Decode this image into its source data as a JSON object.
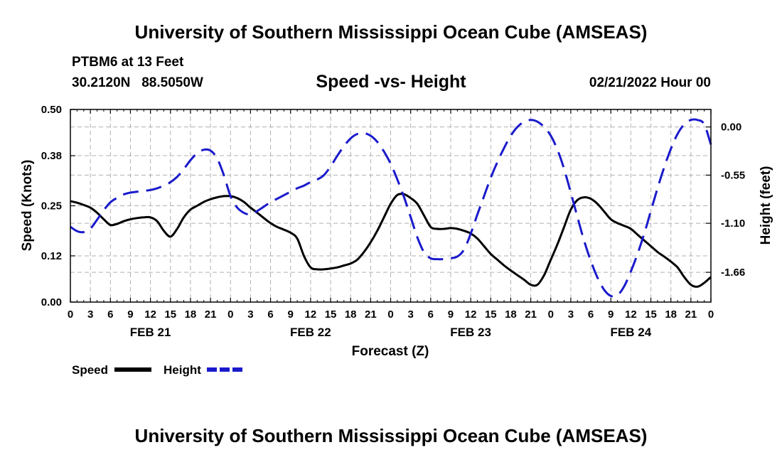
{
  "header": {
    "title": "University of Southern Mississippi Ocean Cube (AMSEAS)",
    "station": "PTBM6 at 13 Feet",
    "coords": "30.2120N   88.5050W",
    "subtitle": "Speed -vs- Height",
    "run_date": "02/21/2022 Hour 00"
  },
  "footer": {
    "title": "University of Southern Mississippi Ocean Cube (AMSEAS)"
  },
  "colors": {
    "speed": "#000000",
    "height": "#1a1acc",
    "grid": "#b0b0b0"
  },
  "chart_data": {
    "type": "line",
    "title": "Speed -vs- Height",
    "xlabel": "Forecast (Z)",
    "ylabel": "Speed (Knots)",
    "y2label": "Height (feet)",
    "xlim": [
      0,
      96
    ],
    "ylim": [
      0,
      0.5
    ],
    "y2lim": [
      -2.0,
      0.2
    ],
    "x_ticks": [
      0,
      3,
      6,
      9,
      12,
      15,
      18,
      21,
      24,
      27,
      30,
      33,
      36,
      39,
      42,
      45,
      48,
      51,
      54,
      57,
      60,
      63,
      66,
      69,
      72,
      75,
      78,
      81,
      84,
      87,
      90,
      93,
      96
    ],
    "x_tick_labels": [
      "0",
      "3",
      "6",
      "9",
      "12",
      "15",
      "18",
      "21",
      "0",
      "3",
      "6",
      "9",
      "12",
      "15",
      "18",
      "21",
      "0",
      "3",
      "6",
      "9",
      "12",
      "15",
      "18",
      "21",
      "0",
      "3",
      "6",
      "9",
      "12",
      "15",
      "18",
      "21",
      "0"
    ],
    "date_labels": [
      {
        "x": 12,
        "label": "FEB 21"
      },
      {
        "x": 36,
        "label": "FEB 22"
      },
      {
        "x": 60,
        "label": "FEB 23"
      },
      {
        "x": 84,
        "label": "FEB 24"
      }
    ],
    "y_ticks": [
      0.0,
      0.12,
      0.25,
      0.38,
      0.5
    ],
    "y_tick_labels": [
      "0.00",
      "0.12",
      "0.25",
      "0.38",
      "0.50"
    ],
    "y2_ticks": [
      -1.66,
      -1.1,
      -0.55,
      0.0
    ],
    "y2_tick_labels": [
      "-1.66",
      "-1.10",
      "-0.55",
      "0.00"
    ],
    "legend": [
      {
        "name": "Speed",
        "style": "solid"
      },
      {
        "name": "Height",
        "style": "dashed"
      }
    ],
    "series": [
      {
        "name": "Speed",
        "axis": "left",
        "style": "solid",
        "x": [
          0,
          1,
          2,
          3,
          4,
          5,
          6,
          7,
          8,
          9,
          10,
          11,
          12,
          13,
          14,
          15,
          16,
          17,
          18,
          19,
          20,
          21,
          22,
          23,
          24,
          25,
          26,
          27,
          28,
          29,
          30,
          31,
          32,
          33,
          34,
          35,
          36,
          37,
          38,
          39,
          40,
          41,
          42,
          43,
          44,
          45,
          46,
          47,
          48,
          49,
          50,
          51,
          52,
          53,
          54,
          55,
          56,
          57,
          58,
          59,
          60,
          61,
          62,
          63,
          64,
          65,
          66,
          67,
          68,
          69,
          70,
          71,
          72,
          73,
          74,
          75,
          76,
          77,
          78,
          79,
          80,
          81,
          82,
          83,
          84,
          85,
          86,
          87,
          88,
          89,
          90,
          91,
          92,
          93,
          94,
          95,
          96
        ],
        "values": [
          0.262,
          0.258,
          0.252,
          0.245,
          0.232,
          0.215,
          0.2,
          0.203,
          0.21,
          0.215,
          0.218,
          0.22,
          0.22,
          0.21,
          0.185,
          0.17,
          0.19,
          0.22,
          0.24,
          0.25,
          0.26,
          0.267,
          0.272,
          0.275,
          0.275,
          0.27,
          0.26,
          0.245,
          0.232,
          0.218,
          0.205,
          0.195,
          0.188,
          0.18,
          0.165,
          0.12,
          0.09,
          0.085,
          0.085,
          0.087,
          0.09,
          0.095,
          0.1,
          0.11,
          0.13,
          0.155,
          0.185,
          0.22,
          0.255,
          0.278,
          0.28,
          0.27,
          0.255,
          0.225,
          0.195,
          0.19,
          0.19,
          0.192,
          0.19,
          0.185,
          0.178,
          0.165,
          0.145,
          0.125,
          0.11,
          0.095,
          0.082,
          0.07,
          0.058,
          0.045,
          0.045,
          0.07,
          0.11,
          0.15,
          0.195,
          0.24,
          0.265,
          0.272,
          0.268,
          0.255,
          0.235,
          0.215,
          0.205,
          0.198,
          0.19,
          0.175,
          0.16,
          0.145,
          0.13,
          0.118,
          0.105,
          0.09,
          0.065,
          0.045,
          0.04,
          0.05,
          0.065
        ]
      },
      {
        "name": "Height",
        "axis": "right",
        "style": "dashed",
        "x": [
          0,
          1,
          2,
          3,
          4,
          5,
          6,
          7,
          8,
          9,
          10,
          11,
          12,
          13,
          14,
          15,
          16,
          17,
          18,
          19,
          20,
          21,
          22,
          23,
          24,
          25,
          26,
          27,
          28,
          29,
          30,
          31,
          32,
          33,
          34,
          35,
          36,
          37,
          38,
          39,
          40,
          41,
          42,
          43,
          44,
          45,
          46,
          47,
          48,
          49,
          50,
          51,
          52,
          53,
          54,
          55,
          56,
          57,
          58,
          59,
          60,
          61,
          62,
          63,
          64,
          65,
          66,
          67,
          68,
          69,
          70,
          71,
          72,
          73,
          74,
          75,
          76,
          77,
          78,
          79,
          80,
          81,
          82,
          83,
          84,
          85,
          86,
          87,
          88,
          89,
          90,
          91,
          92,
          93,
          94,
          95,
          96
        ],
        "values": [
          -1.14,
          -1.19,
          -1.2,
          -1.16,
          -1.06,
          -0.95,
          -0.86,
          -0.81,
          -0.77,
          -0.75,
          -0.74,
          -0.73,
          -0.72,
          -0.7,
          -0.67,
          -0.63,
          -0.57,
          -0.48,
          -0.38,
          -0.3,
          -0.26,
          -0.27,
          -0.36,
          -0.55,
          -0.79,
          -0.92,
          -0.98,
          -1.0,
          -0.96,
          -0.91,
          -0.86,
          -0.82,
          -0.78,
          -0.74,
          -0.7,
          -0.67,
          -0.63,
          -0.6,
          -0.55,
          -0.45,
          -0.33,
          -0.22,
          -0.13,
          -0.08,
          -0.07,
          -0.1,
          -0.17,
          -0.28,
          -0.42,
          -0.6,
          -0.8,
          -1.03,
          -1.26,
          -1.43,
          -1.5,
          -1.51,
          -1.51,
          -1.5,
          -1.48,
          -1.4,
          -1.22,
          -1.0,
          -0.79,
          -0.58,
          -0.4,
          -0.24,
          -0.1,
          0.0,
          0.06,
          0.08,
          0.06,
          0.0,
          -0.1,
          -0.26,
          -0.48,
          -0.75,
          -1.03,
          -1.3,
          -1.53,
          -1.72,
          -1.86,
          -1.93,
          -1.92,
          -1.82,
          -1.65,
          -1.45,
          -1.22,
          -0.96,
          -0.7,
          -0.46,
          -0.25,
          -0.08,
          0.03,
          0.08,
          0.08,
          0.03,
          -0.2
        ]
      }
    ]
  }
}
